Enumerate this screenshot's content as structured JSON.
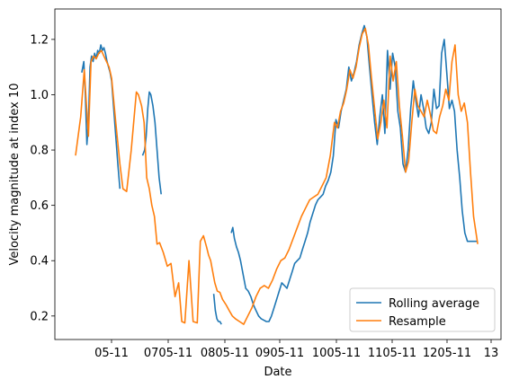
{
  "chart_data": {
    "type": "line",
    "xlabel": "Date",
    "ylabel": "Velocity magnitude at index 10",
    "x_ticks": [
      "05-11",
      "0705-11",
      "0805-11",
      "0905-11",
      "1005-11",
      "1105-11",
      "1205-11",
      "13"
    ],
    "y_ticks": [
      0.2,
      0.4,
      0.6,
      0.8,
      1.0,
      1.2
    ],
    "ylim": [
      0.115,
      1.31
    ],
    "x_range": [
      0,
      7.85
    ],
    "grid": false,
    "legend_position": "lower-right",
    "colors": {
      "Rolling average": "#1f77b4",
      "Resample": "#ff7f0e"
    },
    "series": [
      {
        "name": "Rolling average",
        "segments": [
          {
            "x": [
              0.12,
              0.16,
              0.19,
              0.22,
              0.25,
              0.28,
              0.31,
              0.34,
              0.37,
              0.4,
              0.43,
              0.46,
              0.49,
              0.52,
              0.55,
              0.58,
              0.61,
              0.64,
              0.67,
              0.7,
              0.74,
              0.78,
              0.82,
              0.86
            ],
            "y": [
              1.08,
              1.12,
              1.0,
              0.82,
              0.9,
              1.1,
              1.14,
              1.12,
              1.15,
              1.13,
              1.16,
              1.15,
              1.18,
              1.16,
              1.17,
              1.15,
              1.12,
              1.1,
              1.08,
              1.05,
              0.95,
              0.85,
              0.75,
              0.66
            ]
          },
          {
            "x": [
              1.3,
              1.34,
              1.37,
              1.4,
              1.43,
              1.46,
              1.5,
              1.54,
              1.58,
              1.62,
              1.66
            ],
            "y": [
              0.78,
              0.8,
              0.85,
              0.95,
              1.01,
              1.0,
              0.96,
              0.9,
              0.8,
              0.7,
              0.64
            ]
          },
          {
            "x": [
              2.68,
              2.71,
              2.74,
              2.77,
              2.8,
              2.83
            ],
            "y": [
              0.28,
              0.22,
              0.19,
              0.18,
              0.18,
              0.17
            ]
          },
          {
            "x": [
              3.02,
              3.05,
              3.08,
              3.12,
              3.16,
              3.2,
              3.25,
              3.3,
              3.35,
              3.4,
              3.45,
              3.5,
              3.55,
              3.6,
              3.65,
              3.7,
              3.75,
              3.8,
              3.85,
              3.9,
              3.95,
              4.0,
              4.05,
              4.1,
              4.15,
              4.2,
              4.25,
              4.3,
              4.35,
              4.4,
              4.45,
              4.5,
              4.55,
              4.6,
              4.65,
              4.7,
              4.75,
              4.8,
              4.85,
              4.9,
              4.95,
              5.0,
              5.05,
              5.1,
              5.15,
              5.2,
              5.25,
              5.3,
              5.35,
              5.4,
              5.45,
              5.5,
              5.55,
              5.6,
              5.65,
              5.7,
              5.75,
              5.8,
              5.85,
              5.9,
              5.95,
              6.0,
              6.05,
              6.1,
              6.15,
              6.2,
              6.25,
              6.3,
              6.35,
              6.4,
              6.45,
              6.5,
              6.55,
              6.6,
              6.65,
              6.7,
              6.75,
              6.8,
              6.85,
              6.9,
              6.95,
              7.0,
              7.05,
              7.1,
              7.15,
              7.2,
              7.25,
              7.3,
              7.35,
              7.4,
              7.45,
              7.5,
              7.55,
              7.6,
              7.65,
              7.7,
              7.75,
              7.8
            ],
            "y": [
              0.5,
              0.52,
              0.48,
              0.45,
              0.43,
              0.4,
              0.35,
              0.3,
              0.29,
              0.27,
              0.24,
              0.22,
              0.2,
              0.19,
              0.185,
              0.18,
              0.18,
              0.2,
              0.23,
              0.26,
              0.29,
              0.32,
              0.31,
              0.3,
              0.33,
              0.36,
              0.39,
              0.4,
              0.41,
              0.44,
              0.47,
              0.5,
              0.54,
              0.57,
              0.6,
              0.62,
              0.63,
              0.64,
              0.67,
              0.69,
              0.72,
              0.78,
              0.91,
              0.88,
              0.94,
              0.98,
              1.02,
              1.1,
              1.05,
              1.08,
              1.12,
              1.18,
              1.22,
              1.25,
              1.21,
              1.1,
              1.0,
              0.9,
              0.82,
              0.92,
              1.0,
              0.86,
              1.16,
              1.02,
              1.15,
              1.1,
              0.94,
              0.88,
              0.75,
              0.72,
              0.8,
              0.95,
              1.05,
              0.98,
              0.92,
              1.0,
              0.95,
              0.88,
              0.86,
              0.9,
              1.02,
              0.95,
              0.96,
              1.15,
              1.2,
              1.08,
              0.95,
              0.98,
              0.94,
              0.8,
              0.7,
              0.58,
              0.5,
              0.47,
              0.47,
              0.47,
              0.47,
              0.47
            ]
          }
        ]
      },
      {
        "name": "Resample",
        "segments": [
          {
            "x": [
              0.0,
              0.1,
              0.17,
              0.25,
              0.3,
              0.35,
              0.4,
              0.45,
              0.5,
              0.55,
              0.6,
              0.65,
              0.7,
              0.78,
              0.86,
              0.92,
              0.99,
              1.08,
              1.18,
              1.22,
              1.28,
              1.33,
              1.38,
              1.43,
              1.48,
              1.53,
              1.58,
              1.63,
              1.7,
              1.78,
              1.85,
              1.93,
              2.0,
              2.06,
              2.12,
              2.2,
              2.28,
              2.36,
              2.42,
              2.48,
              2.54,
              2.58,
              2.62,
              2.66,
              2.7,
              2.75,
              2.8,
              2.85,
              2.92,
              2.98,
              3.04,
              3.1,
              3.18,
              3.26,
              3.34,
              3.42,
              3.5,
              3.58,
              3.66,
              3.74,
              3.82,
              3.9,
              3.98,
              4.06,
              4.14,
              4.22,
              4.3,
              4.38,
              4.46,
              4.54,
              4.62,
              4.7,
              4.78,
              4.86,
              4.94,
              5.02,
              5.08,
              5.14,
              5.2,
              5.26,
              5.32,
              5.38,
              5.44,
              5.5,
              5.56,
              5.62,
              5.68,
              5.74,
              5.8,
              5.86,
              5.92,
              5.98,
              6.04,
              6.1,
              6.16,
              6.22,
              6.28,
              6.34,
              6.4,
              6.46,
              6.52,
              6.58,
              6.64,
              6.7,
              6.76,
              6.82,
              6.88,
              6.94,
              7.0,
              7.06,
              7.12,
              7.18,
              7.24,
              7.3,
              7.36,
              7.42,
              7.48,
              7.54,
              7.6,
              7.66,
              7.72,
              7.8
            ],
            "y": [
              0.78,
              0.92,
              1.09,
              0.85,
              1.12,
              1.14,
              1.13,
              1.15,
              1.16,
              1.14,
              1.12,
              1.1,
              1.06,
              0.9,
              0.75,
              0.66,
              0.65,
              0.8,
              1.01,
              1.0,
              0.96,
              0.9,
              0.7,
              0.66,
              0.6,
              0.56,
              0.46,
              0.465,
              0.43,
              0.38,
              0.39,
              0.27,
              0.32,
              0.18,
              0.175,
              0.4,
              0.18,
              0.175,
              0.47,
              0.49,
              0.45,
              0.42,
              0.4,
              0.36,
              0.32,
              0.29,
              0.285,
              0.26,
              0.24,
              0.22,
              0.2,
              0.19,
              0.18,
              0.17,
              0.2,
              0.23,
              0.27,
              0.3,
              0.31,
              0.3,
              0.33,
              0.37,
              0.4,
              0.41,
              0.44,
              0.48,
              0.52,
              0.56,
              0.59,
              0.62,
              0.63,
              0.64,
              0.67,
              0.7,
              0.78,
              0.9,
              0.88,
              0.94,
              0.97,
              1.02,
              1.09,
              1.06,
              1.1,
              1.17,
              1.22,
              1.24,
              1.18,
              1.06,
              0.95,
              0.84,
              0.9,
              0.98,
              0.88,
              1.14,
              1.05,
              1.12,
              0.96,
              0.85,
              0.72,
              0.76,
              0.9,
              1.02,
              0.96,
              0.94,
              0.92,
              0.98,
              0.93,
              0.87,
              0.86,
              0.92,
              0.96,
              1.02,
              0.98,
              1.12,
              1.18,
              1.0,
              0.94,
              0.97,
              0.9,
              0.72,
              0.56,
              0.46
            ]
          }
        ]
      }
    ]
  },
  "legend": {
    "items": [
      {
        "label": "Rolling average",
        "color": "#1f77b4"
      },
      {
        "label": "Resample",
        "color": "#ff7f0e"
      }
    ]
  }
}
